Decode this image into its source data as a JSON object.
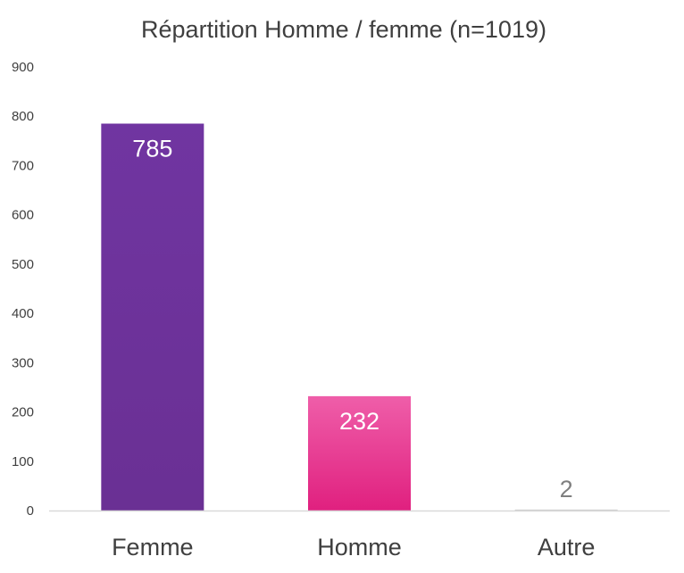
{
  "chart_data": {
    "type": "bar",
    "title": "Répartition Homme / femme (n=1019)",
    "xlabel": "",
    "ylabel": "",
    "categories": [
      "Femme",
      "Homme",
      "Autre"
    ],
    "values": [
      785,
      232,
      2
    ],
    "data_labels": [
      "785",
      "232",
      "2"
    ],
    "ylim": [
      0,
      900
    ],
    "yticks": [
      0,
      100,
      200,
      300,
      400,
      500,
      600,
      700,
      800,
      900
    ],
    "grid": false,
    "legend": "none",
    "colors": [
      "#6f3399",
      "#e8278f",
      "#cccccc"
    ],
    "gradient_colors": [
      [
        "#7035a1",
        "#6a3094"
      ],
      [
        "#ef5ea9",
        "#e0207f"
      ],
      [
        "#d0d0d0",
        "#c8c8c8"
      ]
    ],
    "label_colors": [
      "#ffffff",
      "#ffffff",
      "#7f7f7f"
    ],
    "axis_color": "#d9d9d9",
    "text_color": "#3f3f3f"
  }
}
